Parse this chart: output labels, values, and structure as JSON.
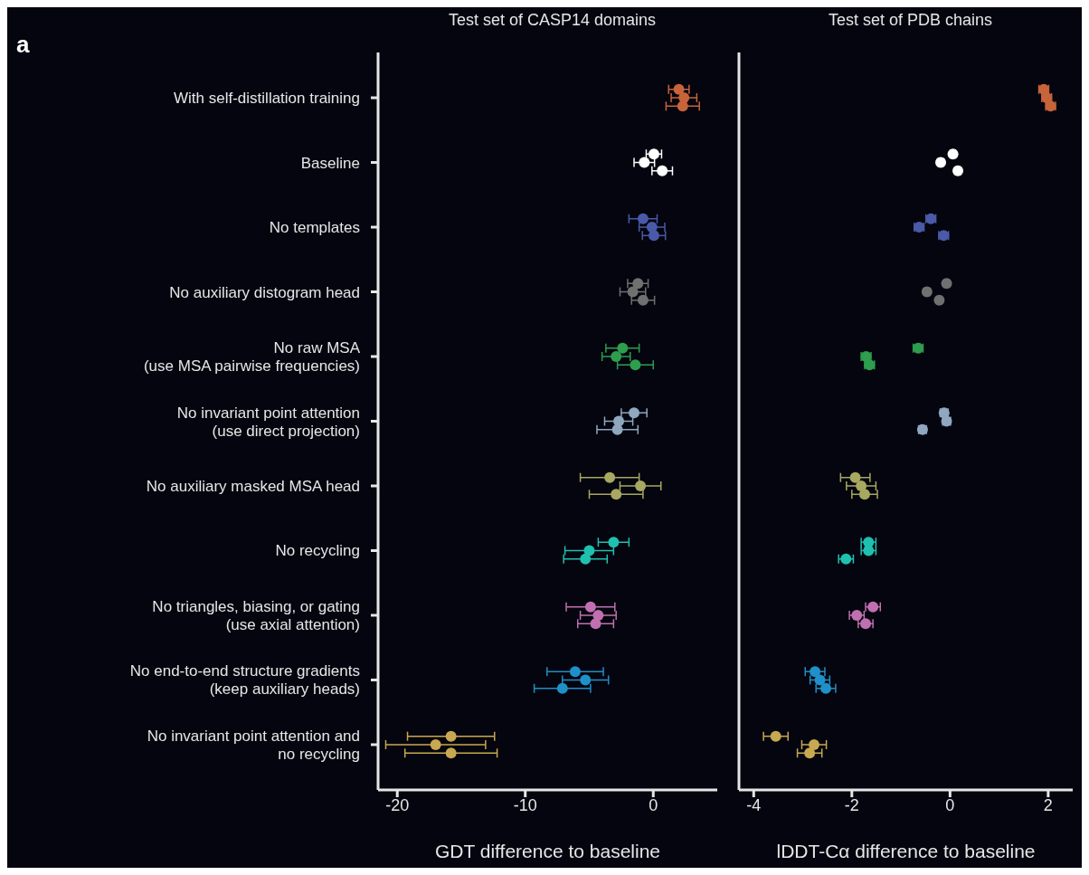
{
  "chart_data": [
    {
      "type": "scatter",
      "title": "Test set of CASP14 domains",
      "xlabel": "GDT difference to baseline",
      "annotations": [
        "a"
      ],
      "marker": "circle",
      "orientation": "horizontal",
      "categories": [
        "With self-distillation training",
        "Baseline",
        "No templates",
        "No auxiliary distogram head",
        "No raw MSA\n(use MSA pairwise frequencies)",
        "No invariant point attention\n(use direct projection)",
        "No auxiliary masked MSA head",
        "No recycling",
        "No triangles, biasing, or gating\n(use axial attention)",
        "No end-to-end structure gradients\n(keep auxiliary heads)",
        "No invariant point attention and\nno recycling"
      ],
      "xlim": [
        -21.5,
        5
      ],
      "xticks": [
        -20,
        -10,
        0
      ],
      "series": [
        {
          "colors": [
            "#c8643a",
            "#ffffff",
            "#4a5aa8",
            "#707070",
            "#2e9e4e",
            "#8fa8c0",
            "#a8a860",
            "#20c0b0",
            "#c070b0",
            "#2090c8",
            "#c8a850"
          ],
          "values": [
            2.0,
            0.05,
            -0.8,
            -1.2,
            -2.4,
            -1.5,
            -3.4,
            -3.1,
            -4.9,
            -6.1,
            -15.8
          ],
          "errors": [
            0.8,
            0.6,
            1.1,
            0.8,
            1.3,
            1.0,
            2.3,
            1.2,
            1.9,
            2.2,
            3.4
          ]
        },
        {
          "colors": [
            "#c8643a",
            "#ffffff",
            "#4a5aa8",
            "#707070",
            "#2e9e4e",
            "#8fa8c0",
            "#a8a860",
            "#20c0b0",
            "#c070b0",
            "#2090c8",
            "#c8a850"
          ],
          "values": [
            2.4,
            -0.7,
            -0.1,
            -1.6,
            -2.9,
            -2.7,
            -1.0,
            -5.0,
            -4.3,
            -5.3,
            -17.0
          ],
          "errors": [
            1.0,
            0.8,
            1.0,
            1.0,
            1.1,
            1.1,
            1.6,
            1.9,
            1.4,
            1.8,
            3.9
          ]
        },
        {
          "colors": [
            "#c8643a",
            "#ffffff",
            "#4a5aa8",
            "#707070",
            "#2e9e4e",
            "#8fa8c0",
            "#a8a860",
            "#20c0b0",
            "#c070b0",
            "#2090c8",
            "#c8a850"
          ],
          "values": [
            2.3,
            0.7,
            0.05,
            -0.8,
            -1.4,
            -2.8,
            -2.9,
            -5.3,
            -4.5,
            -7.1,
            -15.8
          ],
          "errors": [
            1.3,
            0.8,
            0.9,
            0.9,
            1.4,
            1.6,
            2.1,
            1.7,
            1.4,
            2.2,
            3.6
          ]
        }
      ]
    },
    {
      "type": "scatter",
      "title": "Test set of PDB chains",
      "xlabel": "lDDT-Cα difference to baseline",
      "marker": "circle",
      "orientation": "horizontal",
      "tick_labels": "x",
      "categories": [
        null,
        null,
        null,
        null,
        null,
        null,
        null,
        null,
        null,
        null,
        null
      ],
      "xlim": [
        -4.3,
        2.5
      ],
      "xticks": [
        -4,
        -2,
        0,
        2
      ],
      "series": [
        {
          "colors": [
            "#c8643a",
            "#ffffff",
            "#4a5aa8",
            "#707070",
            "#2e9e4e",
            "#8fa8c0",
            "#a8a860",
            "#20c0b0",
            "#c070b0",
            "#2090c8",
            "#c8a850"
          ],
          "values": [
            1.91,
            0.06,
            -0.39,
            -0.07,
            -0.65,
            -0.12,
            -1.93,
            -1.66,
            -1.57,
            -2.75,
            -3.55
          ],
          "errors": [
            0.1,
            0.05,
            0.1,
            0.05,
            0.1,
            0.08,
            0.3,
            0.15,
            0.15,
            0.2,
            0.25
          ]
        },
        {
          "colors": [
            "#c8643a",
            "#ffffff",
            "#4a5aa8",
            "#707070",
            "#2e9e4e",
            "#8fa8c0",
            "#a8a860",
            "#20c0b0",
            "#c070b0",
            "#2090c8",
            "#c8a850"
          ],
          "values": [
            1.97,
            -0.19,
            -0.63,
            -0.47,
            -1.71,
            -0.07,
            -1.81,
            -1.66,
            -1.9,
            -2.65,
            -2.77
          ],
          "errors": [
            0.1,
            0.05,
            0.1,
            0.05,
            0.1,
            0.08,
            0.3,
            0.15,
            0.15,
            0.2,
            0.25
          ]
        },
        {
          "colors": [
            "#c8643a",
            "#ffffff",
            "#4a5aa8",
            "#707070",
            "#2e9e4e",
            "#8fa8c0",
            "#a8a860",
            "#20c0b0",
            "#c070b0",
            "#2090c8",
            "#c8a850"
          ],
          "values": [
            2.05,
            0.16,
            -0.13,
            -0.22,
            -1.64,
            -0.56,
            -1.74,
            -2.12,
            -1.72,
            -2.53,
            -2.86
          ],
          "errors": [
            0.1,
            0.05,
            0.1,
            0.05,
            0.1,
            0.08,
            0.26,
            0.15,
            0.15,
            0.2,
            0.25
          ]
        }
      ]
    }
  ]
}
